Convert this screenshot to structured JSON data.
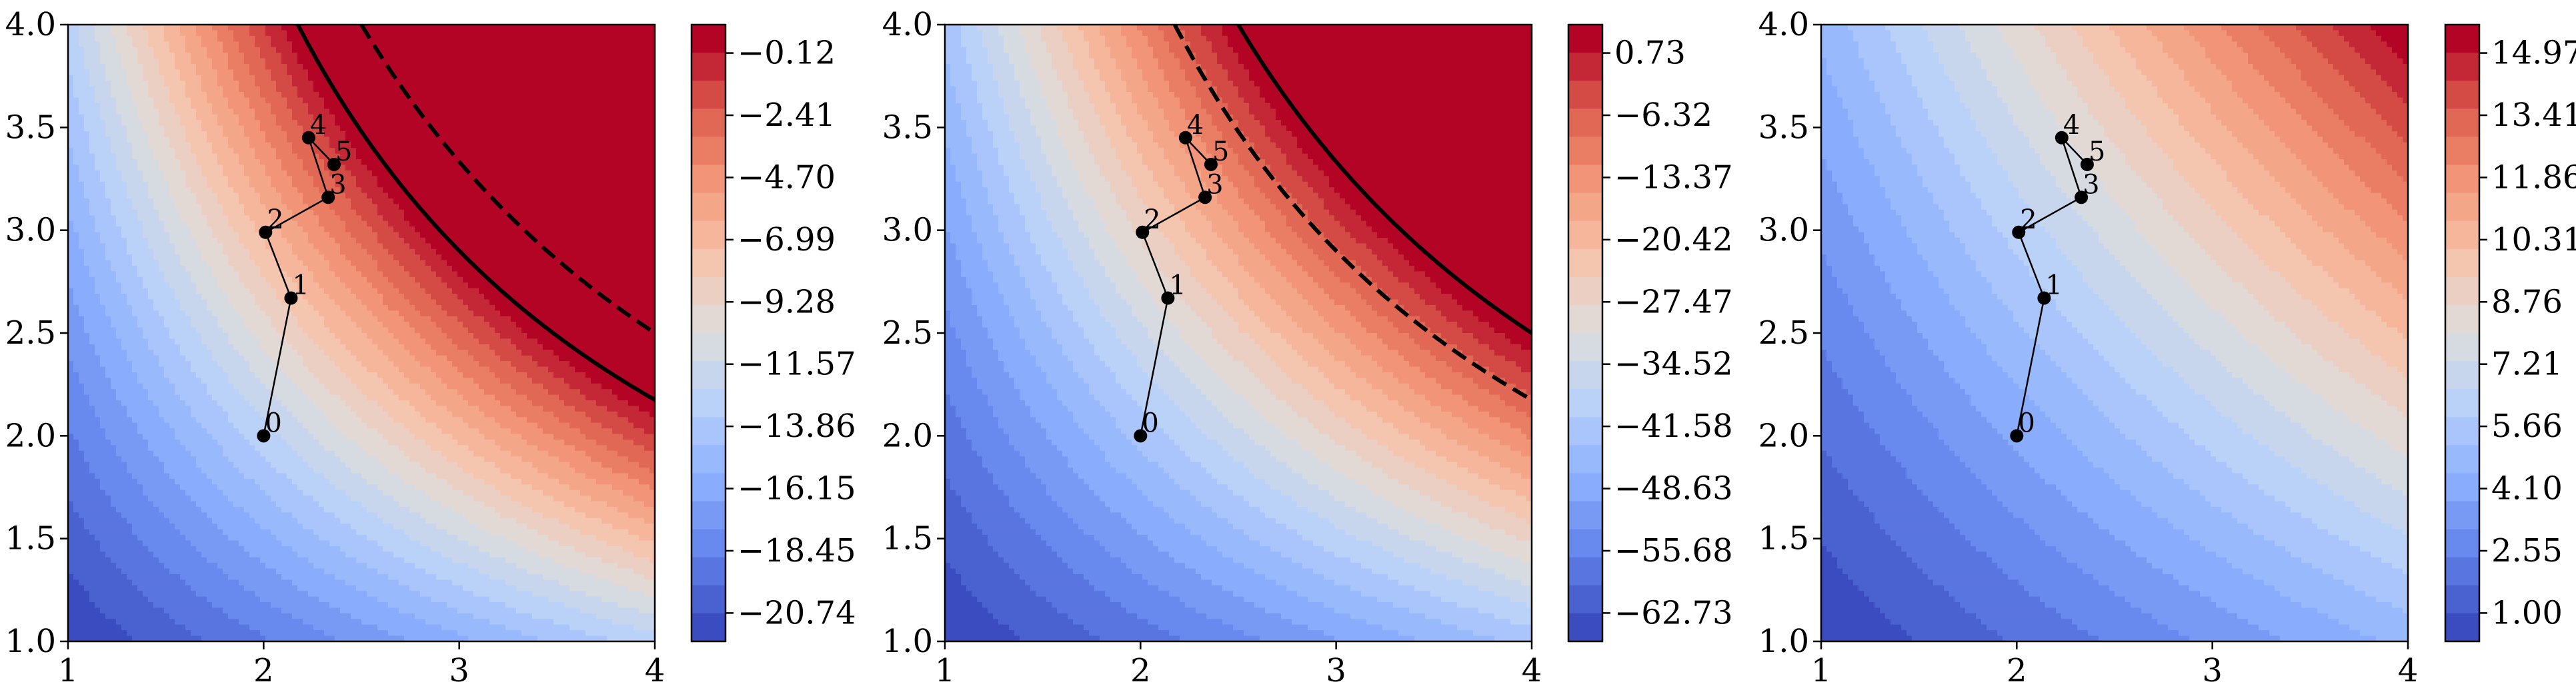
{
  "chart_data": [
    {
      "type": "contour",
      "xlim": [
        1,
        4
      ],
      "ylim": [
        1,
        4
      ],
      "x_ticks": [
        "1",
        "2",
        "3",
        "4"
      ],
      "y_ticks": [
        "1.0",
        "1.5",
        "2.0",
        "2.5",
        "3.0",
        "3.5",
        "4.0"
      ],
      "colormap": "coolwarm",
      "colorbar_ticks": [
        "−0.12",
        "−2.41",
        "−4.70",
        "−6.99",
        "−9.28",
        "−11.57",
        "−13.86",
        "−16.15",
        "−18.45",
        "−20.74"
      ],
      "solid_curve_xy": 8.7,
      "dashed_curve_xy": 10.0,
      "points": [
        {
          "label": "0",
          "x": 2.0,
          "y": 2.0
        },
        {
          "label": "1",
          "x": 2.14,
          "y": 2.67
        },
        {
          "label": "2",
          "x": 2.01,
          "y": 2.99
        },
        {
          "label": "3",
          "x": 2.33,
          "y": 3.16
        },
        {
          "label": "4",
          "x": 2.23,
          "y": 3.45
        },
        {
          "label": "5",
          "x": 2.36,
          "y": 3.32
        }
      ]
    },
    {
      "type": "contour",
      "xlim": [
        1,
        4
      ],
      "ylim": [
        1,
        4
      ],
      "x_ticks": [
        "1",
        "2",
        "3",
        "4"
      ],
      "y_ticks": [
        "1.0",
        "1.5",
        "2.0",
        "2.5",
        "3.0",
        "3.5",
        "4.0"
      ],
      "colormap": "coolwarm",
      "colorbar_ticks": [
        "0.73",
        "−6.32",
        "−13.37",
        "−20.42",
        "−27.47",
        "−34.52",
        "−41.58",
        "−48.63",
        "−55.68",
        "−62.73"
      ],
      "solid_curve_xy": 10.0,
      "dashed_curve_xy": 8.7,
      "points": [
        {
          "label": "0",
          "x": 2.0,
          "y": 2.0
        },
        {
          "label": "1",
          "x": 2.14,
          "y": 2.67
        },
        {
          "label": "2",
          "x": 2.01,
          "y": 2.99
        },
        {
          "label": "3",
          "x": 2.33,
          "y": 3.16
        },
        {
          "label": "4",
          "x": 2.23,
          "y": 3.45
        },
        {
          "label": "5",
          "x": 2.36,
          "y": 3.32
        }
      ]
    },
    {
      "type": "contour",
      "xlim": [
        1,
        4
      ],
      "ylim": [
        1,
        4
      ],
      "x_ticks": [
        "1",
        "2",
        "3",
        "4"
      ],
      "y_ticks": [
        "1.0",
        "1.5",
        "2.0",
        "2.5",
        "3.0",
        "3.5",
        "4.0"
      ],
      "colormap": "coolwarm",
      "colorbar_ticks": [
        "14.97",
        "13.41",
        "11.86",
        "10.31",
        "8.76",
        "7.21",
        "5.66",
        "4.10",
        "2.55",
        "1.00"
      ],
      "points": [
        {
          "label": "0",
          "x": 2.0,
          "y": 2.0
        },
        {
          "label": "1",
          "x": 2.14,
          "y": 2.67
        },
        {
          "label": "2",
          "x": 2.01,
          "y": 2.99
        },
        {
          "label": "3",
          "x": 2.33,
          "y": 3.16
        },
        {
          "label": "4",
          "x": 2.23,
          "y": 3.45
        },
        {
          "label": "5",
          "x": 2.36,
          "y": 3.32
        }
      ]
    }
  ]
}
